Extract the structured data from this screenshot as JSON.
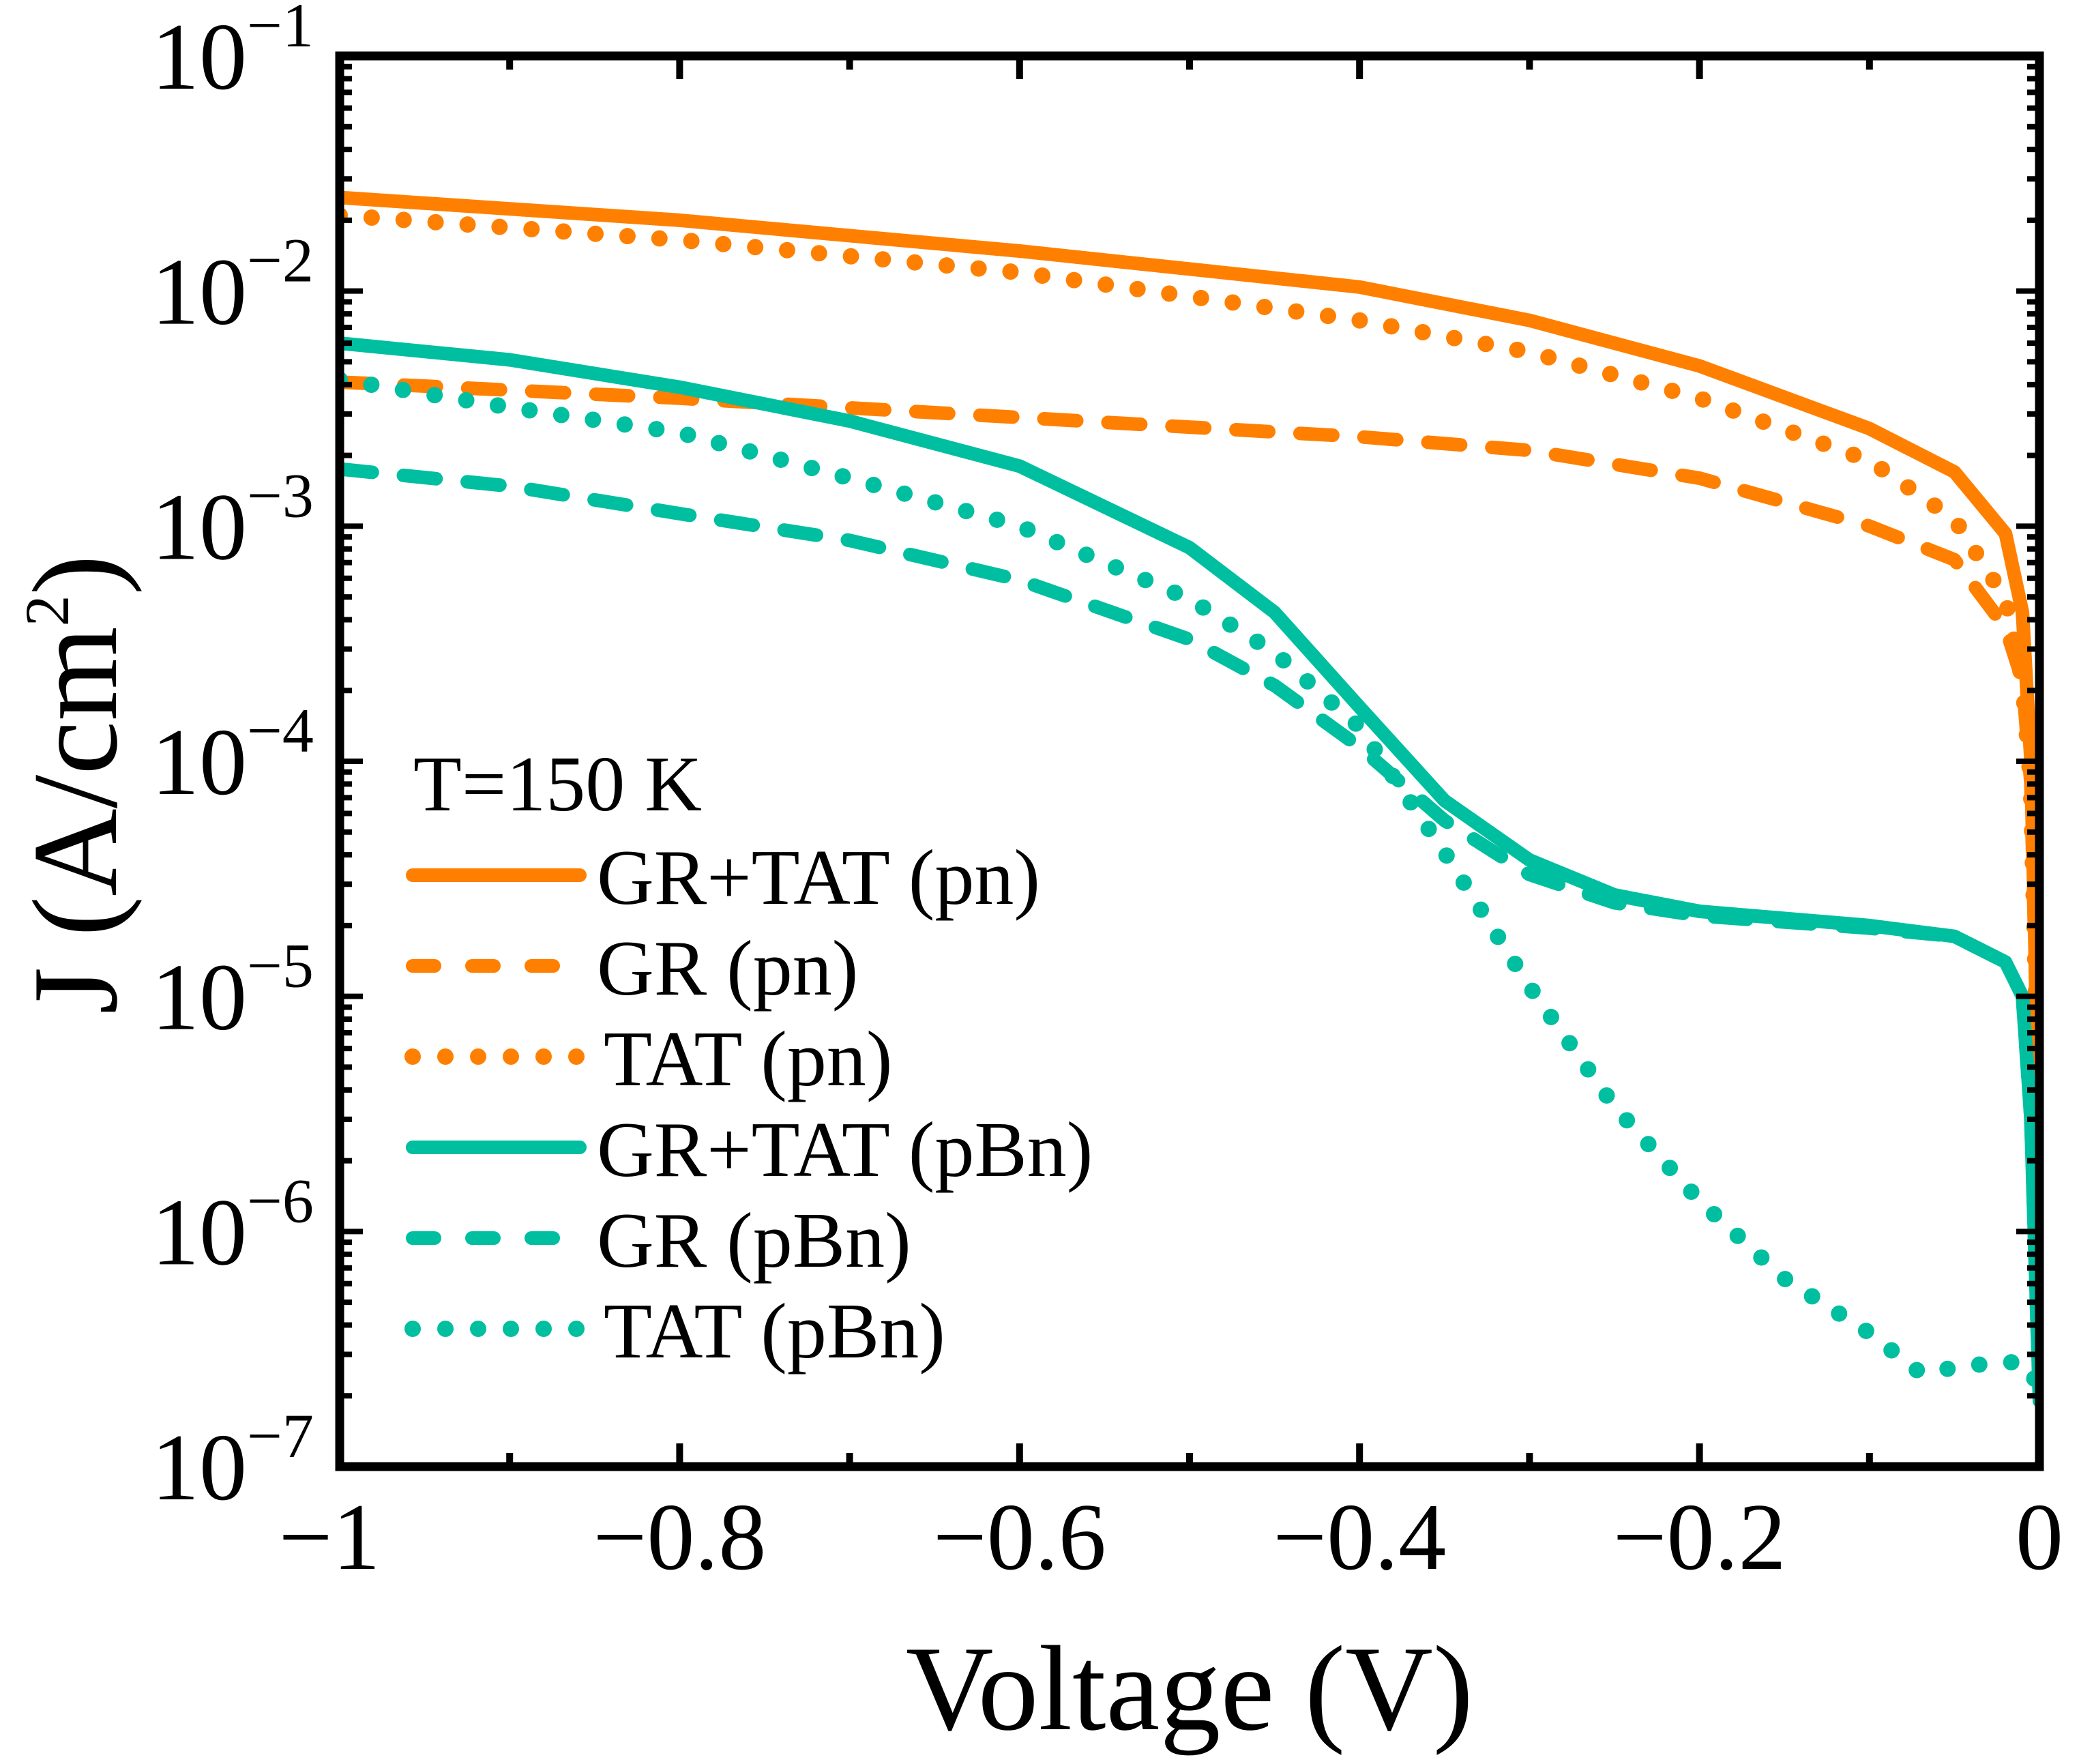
{
  "chart_data": {
    "type": "line",
    "title": "",
    "xlabel": "Voltage (V)",
    "ylabel": "J (A/cm2)",
    "ylabel_parts": {
      "main": "J (A/cm",
      "sup": "2",
      "end": ")"
    },
    "xlim": [
      -1,
      0
    ],
    "ylim": [
      1e-07,
      0.1
    ],
    "yscale": "log",
    "x_ticks": [
      -1,
      -0.8,
      -0.6,
      -0.4,
      -0.2,
      0
    ],
    "x_tick_labels": [
      "−1",
      "−0.8",
      "−0.6",
      "−0.4",
      "−0.2",
      "0"
    ],
    "y_ticks": [
      0.1,
      0.01,
      0.001,
      0.0001,
      1e-05,
      1e-06,
      1e-07
    ],
    "y_tick_labels": [
      {
        "base": "10",
        "exp": "−1"
      },
      {
        "base": "10",
        "exp": "−2"
      },
      {
        "base": "10",
        "exp": "−3"
      },
      {
        "base": "10",
        "exp": "−4"
      },
      {
        "base": "10",
        "exp": "−5"
      },
      {
        "base": "10",
        "exp": "−6"
      },
      {
        "base": "10",
        "exp": "−7"
      }
    ],
    "grid": false,
    "legend_title": "T=150 K",
    "legend_position": "center-left",
    "series": [
      {
        "name": "GR+TAT (pn)",
        "color": "#FF8000",
        "style": "solid",
        "x": [
          -1,
          -0.8,
          -0.6,
          -0.4,
          -0.3,
          -0.2,
          -0.1,
          -0.05,
          -0.02,
          -0.01,
          -0.005,
          -0.002,
          0
        ],
        "y": [
          0.025,
          0.02,
          0.0148,
          0.0104,
          0.0075,
          0.0048,
          0.0026,
          0.0017,
          0.00093,
          0.00043,
          0.0001,
          1e-05,
          1.2e-06
        ]
      },
      {
        "name": "GR (pn)",
        "color": "#FF8000",
        "style": "dashed",
        "x": [
          -1,
          -0.8,
          -0.6,
          -0.4,
          -0.3,
          -0.2,
          -0.1,
          -0.05,
          -0.02,
          -0.01,
          -0.005,
          -0.002,
          0
        ],
        "y": [
          0.0041,
          0.0035,
          0.0029,
          0.0024,
          0.0021,
          0.0016,
          0.001,
          0.00072,
          0.00037,
          0.00022,
          8e-05,
          1e-05,
          1.2e-06
        ]
      },
      {
        "name": "TAT (pn)",
        "color": "#FF8000",
        "style": "dotted",
        "x": [
          -1,
          -0.8,
          -0.6,
          -0.4,
          -0.3,
          -0.2,
          -0.1,
          -0.05,
          -0.02,
          -0.01,
          -0.005,
          -0.002,
          0
        ],
        "y": [
          0.021,
          0.0165,
          0.012,
          0.0075,
          0.0055,
          0.0035,
          0.0019,
          0.00107,
          0.00049,
          0.00022,
          8e-05,
          1e-05,
          1.2e-06
        ]
      },
      {
        "name": "GR+TAT (pBn)",
        "color": "#00BFA0",
        "style": "solid",
        "x": [
          -1,
          -0.9,
          -0.8,
          -0.7,
          -0.6,
          -0.5,
          -0.45,
          -0.4,
          -0.35,
          -0.3,
          -0.25,
          -0.2,
          -0.1,
          -0.05,
          -0.02,
          -0.01,
          -0.005,
          0
        ],
        "y": [
          0.006,
          0.0051,
          0.0039,
          0.0028,
          0.0018,
          0.00081,
          0.00043,
          0.00017,
          6.8e-05,
          3.8e-05,
          2.7e-05,
          2.3e-05,
          2e-05,
          1.8e-05,
          1.4e-05,
          1e-05,
          3e-06,
          1.9e-07
        ]
      },
      {
        "name": "GR (pBn)",
        "color": "#00BFA0",
        "style": "dashed",
        "x": [
          -1,
          -0.9,
          -0.8,
          -0.7,
          -0.6,
          -0.5,
          -0.45,
          -0.4,
          -0.35,
          -0.3,
          -0.25,
          -0.2,
          -0.1,
          -0.05,
          -0.02,
          -0.01,
          -0.005,
          0
        ],
        "y": [
          0.00175,
          0.00148,
          0.00113,
          0.00087,
          0.00059,
          0.00033,
          0.00021,
          0.000115,
          5.6e-05,
          3.3e-05,
          2.5e-05,
          2.2e-05,
          1.95e-05,
          1.8e-05,
          1.4e-05,
          1e-05,
          3e-06,
          1.9e-07
        ]
      },
      {
        "name": "TAT (pBn)",
        "color": "#00BFA0",
        "style": "dotted",
        "x": [
          -1,
          -0.9,
          -0.8,
          -0.7,
          -0.6,
          -0.5,
          -0.45,
          -0.4,
          -0.35,
          -0.3,
          -0.25,
          -0.2,
          -0.15,
          -0.1,
          -0.07,
          -0.04,
          -0.01,
          0
        ],
        "y": [
          0.0042,
          0.0032,
          0.0025,
          0.0016,
          0.001,
          0.00049,
          0.00029,
          0.00014,
          4.1e-05,
          1.1e-05,
          3.4e-06,
          1.35e-06,
          6.3e-07,
          3.7e-07,
          2.5e-07,
          2.7e-07,
          2.8e-07,
          2.2e-07
        ]
      }
    ]
  }
}
